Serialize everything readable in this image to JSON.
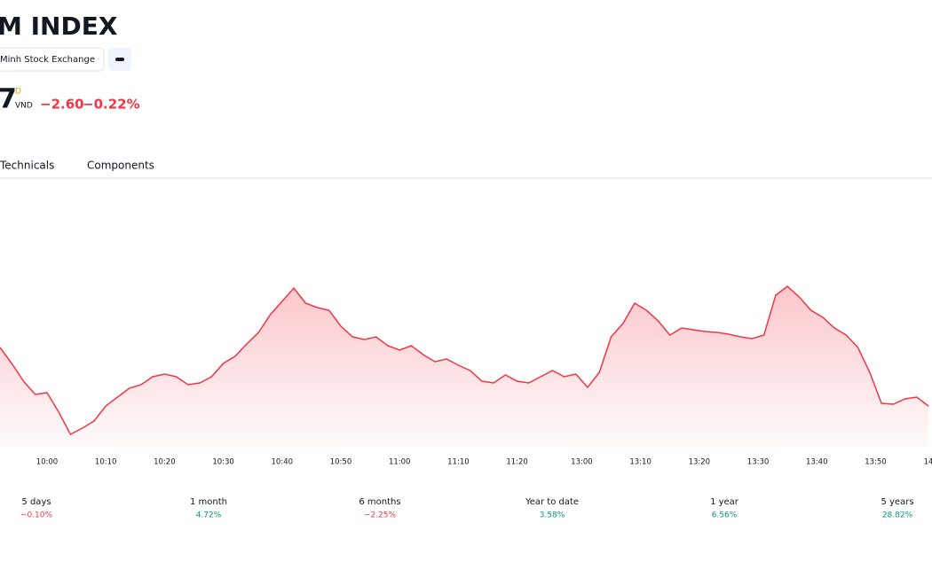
{
  "header": {
    "title": "M INDEX",
    "exchange": "Minh Stock Exchange",
    "price": "7",
    "price_flag": "D",
    "currency": "VND",
    "change": "−2.60",
    "change_percent": "−0.22%"
  },
  "tabs": [
    "Technicals",
    "Components"
  ],
  "chart_data": {
    "type": "area",
    "color": "#f23645",
    "x": [
      -8,
      -6,
      -4,
      -2,
      0,
      2,
      4,
      6,
      8,
      10,
      12,
      14,
      16,
      18,
      20,
      22,
      24,
      26,
      28,
      30,
      32,
      34,
      36,
      38,
      40,
      42,
      44,
      46,
      48,
      50,
      52,
      54,
      56,
      58,
      60,
      62,
      64,
      66,
      68,
      70,
      72,
      74,
      76,
      78,
      80,
      82,
      84,
      86,
      88,
      90,
      92,
      94,
      96,
      98,
      100,
      102,
      104,
      106,
      108,
      110,
      112,
      114,
      116,
      118,
      120,
      122,
      124,
      126,
      128,
      130,
      132,
      134,
      136,
      138,
      140,
      142,
      144,
      146,
      148,
      150
    ],
    "values": [
      118,
      100,
      80,
      65,
      67,
      45,
      20,
      27,
      35,
      52,
      62,
      72,
      76,
      85,
      88,
      85,
      76,
      78,
      85,
      100,
      108,
      122,
      135,
      155,
      170,
      185,
      168,
      163,
      160,
      142,
      130,
      127,
      130,
      120,
      115,
      120,
      110,
      102,
      105,
      98,
      92,
      80,
      78,
      87,
      80,
      78,
      85,
      92,
      85,
      88,
      73,
      90,
      130,
      145,
      168,
      160,
      148,
      132,
      140,
      138,
      136,
      135,
      133,
      130,
      128,
      132,
      177,
      187,
      175,
      160,
      152,
      140,
      132,
      118,
      90,
      55,
      54,
      60,
      62,
      52
    ],
    "xlim": [
      -8,
      150.6
    ],
    "ylim": [
      0,
      300
    ],
    "xticks": [
      {
        "value": 0,
        "label": "10:00"
      },
      {
        "value": 10,
        "label": "10:10"
      },
      {
        "value": 20,
        "label": "10:20"
      },
      {
        "value": 30,
        "label": "10:30"
      },
      {
        "value": 40,
        "label": "10:40"
      },
      {
        "value": 50,
        "label": "10:50"
      },
      {
        "value": 60,
        "label": "11:00"
      },
      {
        "value": 70,
        "label": "11:10"
      },
      {
        "value": 80,
        "label": "11:20"
      },
      {
        "value": 91,
        "label": "13:00"
      },
      {
        "value": 101,
        "label": "13:10"
      },
      {
        "value": 111,
        "label": "13:20"
      },
      {
        "value": 121,
        "label": "13:30"
      },
      {
        "value": 131,
        "label": "13:40"
      },
      {
        "value": 141,
        "label": "13:50"
      },
      {
        "value": 150,
        "label": "14"
      }
    ]
  },
  "performance": [
    {
      "period": "5 days",
      "change": "−0.10%"
    },
    {
      "period": "1 month",
      "change": "4.72%"
    },
    {
      "period": "6 months",
      "change": "−2.25%"
    },
    {
      "period": "Year to date",
      "change": "3.58%"
    },
    {
      "period": "1 year",
      "change": "6.56%"
    },
    {
      "period": "5 years",
      "change": "28.82%"
    }
  ]
}
